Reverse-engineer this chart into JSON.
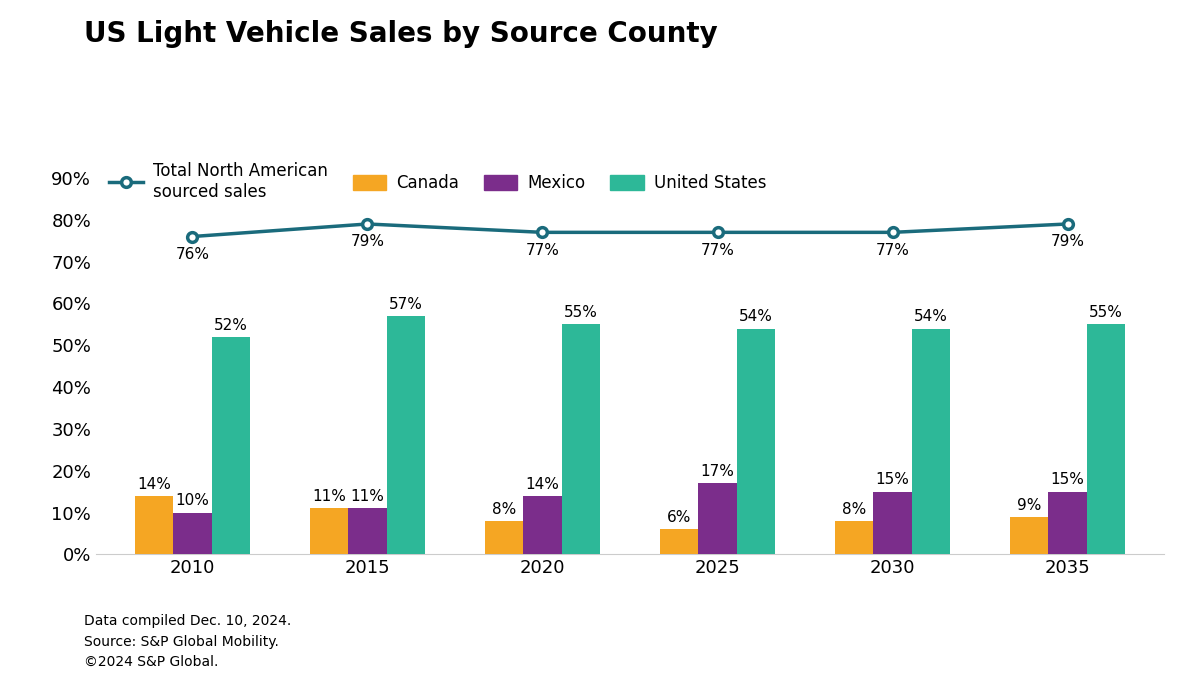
{
  "title": "US Light Vehicle Sales by Source County",
  "years": [
    2010,
    2015,
    2020,
    2025,
    2030,
    2035
  ],
  "canada": [
    14,
    11,
    8,
    6,
    8,
    9
  ],
  "mexico": [
    10,
    11,
    14,
    17,
    15,
    15
  ],
  "united_states": [
    52,
    57,
    55,
    54,
    54,
    55
  ],
  "total_na": [
    76,
    79,
    77,
    77,
    77,
    79
  ],
  "canada_color": "#F5A623",
  "mexico_color": "#7B2D8B",
  "us_color": "#2DB898",
  "total_line_color": "#1A6B7C",
  "background_color": "#FFFFFF",
  "bar_width": 0.22,
  "ylim": [
    0,
    97
  ],
  "yticks": [
    0,
    10,
    20,
    30,
    40,
    50,
    60,
    70,
    80,
    90
  ],
  "ytick_labels": [
    "0%",
    "10%",
    "20%",
    "30%",
    "40%",
    "50%",
    "60%",
    "70%",
    "80%",
    "90%"
  ],
  "footnote": "Data compiled Dec. 10, 2024.\nSource: S&P Global Mobility.\n©2024 S&P Global.",
  "title_fontsize": 20,
  "legend_fontsize": 12,
  "tick_fontsize": 13,
  "annotation_fontsize": 11,
  "footnote_fontsize": 10
}
